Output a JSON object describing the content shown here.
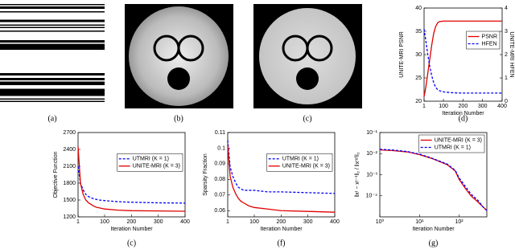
{
  "figure_labels": [
    "(a)",
    "(b)",
    "(c)"
  ],
  "chart_data": [
    {
      "type": "line",
      "caption": "(d)",
      "x_label": "Iteration Number",
      "y_label": "UNITE-MRI PSNR",
      "y2_label": "UNITE-MRI HFEN",
      "x": [
        1,
        10,
        20,
        30,
        40,
        50,
        60,
        70,
        80,
        100,
        150,
        200,
        300,
        400
      ],
      "series": [
        {
          "name": "PSNR",
          "color": "#e00000",
          "dash": false,
          "values": [
            21,
            23,
            26,
            29,
            32,
            34.5,
            36,
            36.8,
            37.1,
            37.2,
            37.2,
            37.2,
            37.2,
            37.2
          ]
        },
        {
          "name": "HFEN",
          "color": "#0000ff",
          "dash": true,
          "axis": "y2",
          "values": [
            3.1,
            2.6,
            2.0,
            1.5,
            1.1,
            0.8,
            0.6,
            0.5,
            0.45,
            0.4,
            0.36,
            0.35,
            0.35,
            0.35
          ]
        }
      ],
      "xlim": [
        1,
        400
      ],
      "xticks": [
        1,
        100,
        200,
        300,
        400
      ],
      "ylim": [
        20,
        40
      ],
      "yticks": [
        20,
        25,
        30,
        35,
        40
      ],
      "y2lim": [
        0,
        4
      ],
      "y2ticks": [
        0,
        1,
        2,
        3,
        4
      ],
      "legend": "center right"
    },
    {
      "type": "line",
      "caption": "(c)",
      "x_label": "Iteration Number",
      "y_label": "Objective Function",
      "x": [
        1,
        10,
        20,
        30,
        40,
        50,
        60,
        70,
        80,
        100,
        150,
        200,
        300,
        400
      ],
      "series": [
        {
          "name": "UTMRI (K = 1)",
          "color": "#0000ff",
          "dash": true,
          "values": [
            2100,
            1800,
            1680,
            1600,
            1560,
            1540,
            1520,
            1510,
            1500,
            1490,
            1470,
            1460,
            1450,
            1445
          ]
        },
        {
          "name": "UNITE-MRI (K = 3)",
          "color": "#e00000",
          "dash": false,
          "values": [
            2450,
            1800,
            1600,
            1500,
            1450,
            1420,
            1390,
            1370,
            1360,
            1340,
            1320,
            1310,
            1305,
            1300
          ]
        }
      ],
      "xlim": [
        1,
        400
      ],
      "xticks": [
        1,
        100,
        200,
        300,
        400
      ],
      "ylim": [
        1200,
        2700
      ],
      "yticks": [
        1200,
        1500,
        1800,
        2100,
        2400,
        2700
      ],
      "legend": "center right"
    },
    {
      "type": "line",
      "caption": "(f)",
      "x_label": "Iteration Number",
      "y_label": "Sparsity Fraction",
      "x": [
        1,
        10,
        20,
        30,
        40,
        50,
        60,
        70,
        80,
        100,
        150,
        200,
        300,
        400
      ],
      "series": [
        {
          "name": "UTMRI (K = 1)",
          "color": "#0000ff",
          "dash": true,
          "values": [
            0.105,
            0.088,
            0.082,
            0.078,
            0.075,
            0.074,
            0.073,
            0.073,
            0.073,
            0.073,
            0.072,
            0.072,
            0.0715,
            0.071
          ]
        },
        {
          "name": "UNITE-MRI (K = 3)",
          "color": "#e00000",
          "dash": false,
          "values": [
            0.102,
            0.082,
            0.075,
            0.071,
            0.068,
            0.066,
            0.065,
            0.064,
            0.063,
            0.062,
            0.061,
            0.06,
            0.0595,
            0.059
          ]
        }
      ],
      "xlim": [
        1,
        400
      ],
      "xticks": [
        1,
        100,
        200,
        300,
        400
      ],
      "ylim": [
        0.056,
        0.11
      ],
      "yticks": [
        0.06,
        0.07,
        0.08,
        0.09,
        0.1,
        0.11
      ],
      "legend": "center right"
    },
    {
      "type": "line",
      "caption": "(g)",
      "x_label": "Iteration Number",
      "y_label": "‖xᵗ − xᵗ⁻¹‖₂ / ‖xʳᵉᶠ‖₂",
      "x": [
        1,
        2,
        5,
        10,
        20,
        50,
        80,
        100,
        150,
        200,
        300,
        400,
        500
      ],
      "series": [
        {
          "name": "UNITE-MRI (K = 3)",
          "color": "#e00000",
          "dash": false,
          "values": [
            0.015,
            0.014,
            0.012,
            0.009,
            0.006,
            0.003,
            0.0015,
            0.0006,
            0.0002,
            0.0001,
            5e-05,
            3e-05,
            2e-05
          ]
        },
        {
          "name": "UTMRI (K = 1)",
          "color": "#0000ff",
          "dash": true,
          "values": [
            0.016,
            0.015,
            0.0125,
            0.0095,
            0.0062,
            0.0032,
            0.0016,
            0.0007,
            0.00025,
            0.00012,
            6e-05,
            3e-05,
            2e-05
          ]
        }
      ],
      "xscale": "log",
      "yscale": "log",
      "xlim": [
        1,
        500
      ],
      "xticks": [
        {
          "value": 1,
          "label": "10⁰"
        },
        {
          "value": 10,
          "label": "10¹"
        },
        {
          "value": 100,
          "label": "10²"
        }
      ],
      "ylim": [
        1e-05,
        0.1
      ],
      "yticks": [
        {
          "value": 0.0001,
          "label": "10⁻⁴"
        },
        {
          "value": 0.001,
          "label": "10⁻³"
        },
        {
          "value": 0.01,
          "label": "10⁻²"
        },
        {
          "value": 0.1,
          "label": "10⁻¹"
        }
      ],
      "legend": "upper right"
    }
  ]
}
